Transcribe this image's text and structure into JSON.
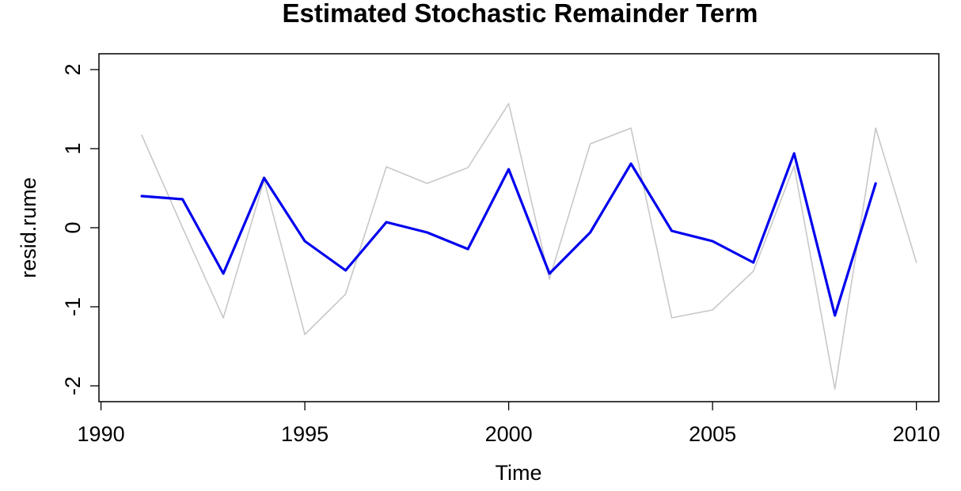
{
  "chart_data": {
    "type": "line",
    "title": "Estimated Stochastic Remainder Term",
    "xlabel": "Time",
    "ylabel": "resid.rume",
    "xlim": [
      1989.95,
      2010.55
    ],
    "ylim": [
      -2.2,
      2.2
    ],
    "x_ticks": [
      1990,
      1995,
      2000,
      2005,
      2010
    ],
    "y_ticks": [
      -2,
      -1,
      0,
      1,
      2
    ],
    "grid": false,
    "legend": "none",
    "series": [
      {
        "color": "#c8c8c8",
        "points": [
          {
            "x": 1991,
            "y": 1.17
          },
          {
            "x": 1992,
            "y": 0.0
          },
          {
            "x": 1993,
            "y": -1.14
          },
          {
            "x": 1994,
            "y": 0.6
          },
          {
            "x": 1995,
            "y": -1.35
          },
          {
            "x": 1996,
            "y": -0.84
          },
          {
            "x": 1997,
            "y": 0.77
          },
          {
            "x": 1998,
            "y": 0.56
          },
          {
            "x": 1999,
            "y": 0.76
          },
          {
            "x": 2000,
            "y": 1.57
          },
          {
            "x": 2001,
            "y": -0.65
          },
          {
            "x": 2002,
            "y": 1.06
          },
          {
            "x": 2003,
            "y": 1.26
          },
          {
            "x": 2004,
            "y": -1.14
          },
          {
            "x": 2005,
            "y": -1.04
          },
          {
            "x": 2006,
            "y": -0.55
          },
          {
            "x": 2007,
            "y": 0.78
          },
          {
            "x": 2008,
            "y": -2.04
          },
          {
            "x": 2009,
            "y": 1.26
          },
          {
            "x": 2010,
            "y": -0.44
          }
        ]
      },
      {
        "color": "#0000ee",
        "points": [
          {
            "x": 1991,
            "y": 0.4
          },
          {
            "x": 1992,
            "y": 0.36
          },
          {
            "x": 1993,
            "y": -0.58
          },
          {
            "x": 1994,
            "y": 0.63
          },
          {
            "x": 1995,
            "y": -0.17
          },
          {
            "x": 1996,
            "y": -0.54
          },
          {
            "x": 1997,
            "y": 0.07
          },
          {
            "x": 1998,
            "y": -0.06
          },
          {
            "x": 1999,
            "y": -0.27
          },
          {
            "x": 2000,
            "y": 0.74
          },
          {
            "x": 2001,
            "y": -0.58
          },
          {
            "x": 2002,
            "y": -0.06
          },
          {
            "x": 2003,
            "y": 0.81
          },
          {
            "x": 2004,
            "y": -0.04
          },
          {
            "x": 2005,
            "y": -0.17
          },
          {
            "x": 2006,
            "y": -0.44
          },
          {
            "x": 2007,
            "y": 0.94
          },
          {
            "x": 2008,
            "y": -1.11
          },
          {
            "x": 2009,
            "y": 0.56
          }
        ]
      }
    ]
  }
}
